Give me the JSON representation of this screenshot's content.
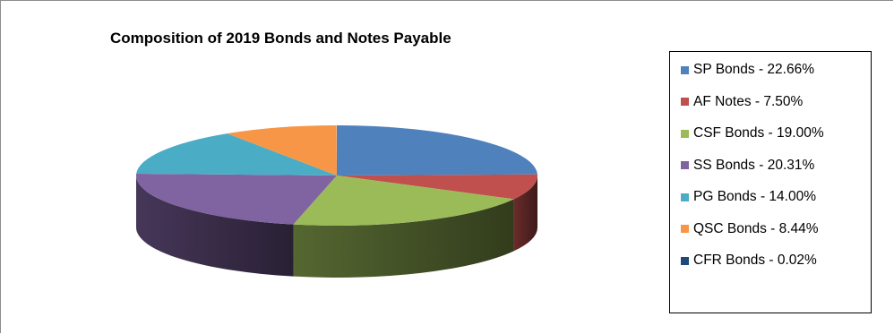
{
  "chart_data": {
    "type": "pie",
    "title": "Composition of 2019 Bonds and Notes Payable",
    "legend_position": "right",
    "slices": [
      {
        "label": "SP Bonds - 22.66%",
        "value": 22.66,
        "color": "#4f81bd"
      },
      {
        "label": "AF Notes - 7.50%",
        "value": 7.5,
        "color": "#c0504d"
      },
      {
        "label": "CSF Bonds - 19.00%",
        "value": 19.0,
        "color": "#9bbb59"
      },
      {
        "label": "SS Bonds - 20.31%",
        "value": 20.31,
        "color": "#8064a2"
      },
      {
        "label": "PG Bonds - 14.00%",
        "value": 14.0,
        "color": "#4bacc6"
      },
      {
        "label": "QSC Bonds - 8.44%",
        "value": 8.44,
        "color": "#f79646"
      },
      {
        "label": "CFR Bonds - 0.02%",
        "value": 0.02,
        "color": "#1f497d"
      }
    ]
  }
}
